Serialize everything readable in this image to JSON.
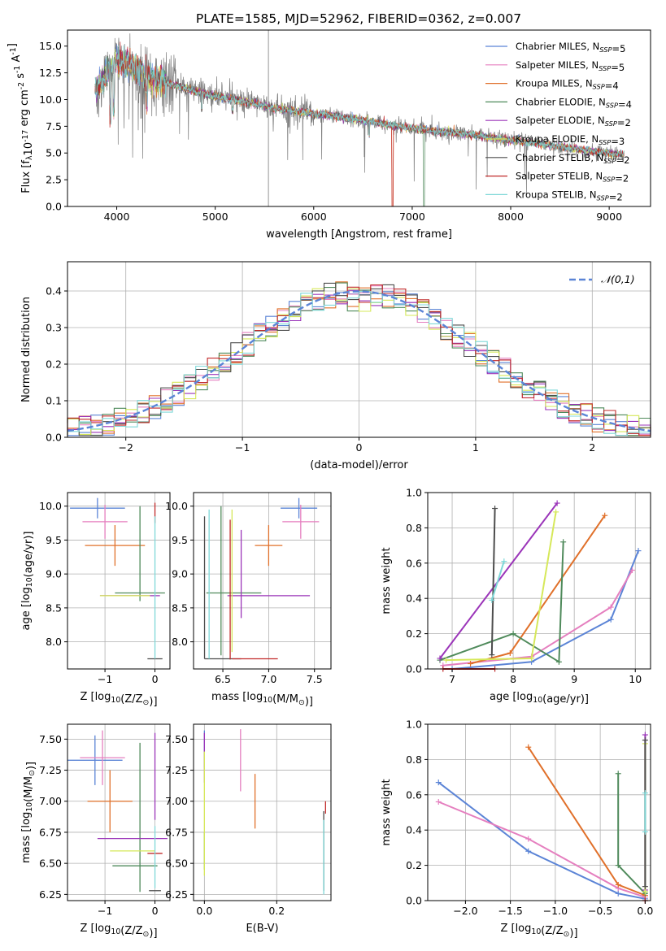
{
  "title": "PLATE=1585, MJD=52962, FIBERID=0362, z=0.007",
  "models": [
    {
      "name": "Chabrier MILES, N$_{SSP}$=5",
      "color": "#5b84d6"
    },
    {
      "name": "Salpeter MILES, N$_{SSP}$=5",
      "color": "#e57fbf"
    },
    {
      "name": "Kroupa MILES, N$_{SSP}$=4",
      "color": "#e0702a"
    },
    {
      "name": "Chabrier ELODIE, N$_{SSP}$=4",
      "color": "#4f8a5b"
    },
    {
      "name": "Salpeter ELODIE, N$_{SSP}$=2",
      "color": "#9b35b9"
    },
    {
      "name": "Kroupa ELODIE, N$_{SSP}$=3",
      "color": "#d6e85a"
    },
    {
      "name": "Chabrier STELIB, N$_{SSP}$=2",
      "color": "#4d4d4d"
    },
    {
      "name": "Salpeter STELIB, N$_{SSP}$=2",
      "color": "#c12a2a"
    },
    {
      "name": "Kroupa STELIB, N$_{SSP}$=2",
      "color": "#7fd8d8"
    }
  ],
  "chart_data": [
    {
      "id": "spectrum",
      "type": "line",
      "xlabel": "wavelength [Angstrom, rest frame]",
      "ylabel": "Flux [f$_\\lambda$10$^{-17}$ erg cm$^{-2}$ s$^{-1}$ A$^{-1}$]",
      "xlim": [
        3500,
        9420
      ],
      "ylim": [
        0,
        16.5
      ],
      "xticks": [
        4000,
        5000,
        6000,
        7000,
        8000,
        9000
      ],
      "yticks": [
        0.0,
        2.5,
        5.0,
        7.5,
        10.0,
        12.5,
        15.0
      ],
      "grid": false,
      "legend": "top-right",
      "continuum": {
        "x": [
          3800,
          3900,
          4000,
          4100,
          4300,
          4500,
          4700,
          5000,
          5300,
          5600,
          6000,
          6400,
          6800,
          7200,
          7600,
          8000,
          8400,
          8800,
          9100
        ],
        "y": [
          11.0,
          12.5,
          13.6,
          13.4,
          12.2,
          11.6,
          11.0,
          10.3,
          9.8,
          9.2,
          8.7,
          8.2,
          7.6,
          7.1,
          6.7,
          6.2,
          5.7,
          5.2,
          4.9
        ]
      },
      "model_wavelength_range": [
        3780,
        9150
      ],
      "model_dropout_wavelengths": [
        3890,
        4630,
        6800,
        7120,
        7420
      ],
      "spike_wavelength": 5540
    },
    {
      "id": "residuals",
      "type": "step",
      "xlabel": "(data-model)/error",
      "ylabel": "Normed distribution",
      "xlim": [
        -2.5,
        2.5
      ],
      "ylim": [
        0,
        0.48
      ],
      "xticks": [
        -2,
        -1,
        0,
        1,
        2
      ],
      "yticks": [
        0.0,
        0.1,
        0.2,
        0.3,
        0.4
      ],
      "grid": true,
      "legend": "top-right",
      "gaussian": {
        "label": "$\\mathcal{N}(0,1)$",
        "mean": 0,
        "sigma": 1,
        "color": "#5b84d6"
      },
      "bin_width": 0.1
    },
    {
      "id": "age-vs-z",
      "type": "errorbar",
      "xlabel": "Z [log$_{10}$(Z/Z$_\\odot$)]",
      "ylabel": "age  [log$_{10}$(age/yr)]",
      "xlim": [
        -1.75,
        0.3
      ],
      "ylim": [
        7.6,
        10.2
      ],
      "xticks": [
        -1,
        0
      ],
      "yticks": [
        8.0,
        8.5,
        9.0,
        9.5,
        10.0
      ],
      "grid": true,
      "points": [
        {
          "model": 0,
          "x": -1.15,
          "y": 9.97,
          "xerr": 0.55,
          "yerr": 0.15
        },
        {
          "model": 1,
          "x": -1.0,
          "y": 9.77,
          "xerr": 0.45,
          "yerr": 0.25
        },
        {
          "model": 2,
          "x": -0.8,
          "y": 9.42,
          "xerr": 0.6,
          "yerr": 0.3
        },
        {
          "model": 3,
          "x": -0.3,
          "y": 9.3,
          "xerr": 0.0,
          "yerr": 0.7
        },
        {
          "model": 3,
          "x": -0.3,
          "y": 8.72,
          "xerr": 0.5,
          "yerr": 0.0
        },
        {
          "model": 4,
          "x": -0.5,
          "y": 8.68,
          "xerr": 0.6,
          "yerr": 0.0
        },
        {
          "model": 5,
          "x": -0.6,
          "y": 8.68,
          "xerr": 0.5,
          "yerr": 0.0
        },
        {
          "model": 6,
          "x": 0.0,
          "y": 7.75,
          "xerr": 0.15,
          "yerr": 0.0
        },
        {
          "model": 7,
          "x": 0.0,
          "y": 9.9,
          "xerr": 0.0,
          "yerr": 0.15
        },
        {
          "model": 8,
          "x": 0.0,
          "y": 8.8,
          "xerr": 0.0,
          "yerr": 1.05
        }
      ]
    },
    {
      "id": "age-vs-mass",
      "type": "errorbar",
      "xlabel": "mass [log$_{10}$(M/M$_\\odot$)]",
      "ylabel": "",
      "xlim": [
        6.18,
        7.68
      ],
      "ylim": [
        7.6,
        10.2
      ],
      "xticks": [
        6.5,
        7.0,
        7.5
      ],
      "yticks": [
        8.0,
        8.5,
        9.0,
        9.5,
        10.0
      ],
      "grid": true,
      "points": [
        {
          "model": 0,
          "x": 7.33,
          "y": 9.97,
          "xerr": 0.2,
          "yerr": 0.15
        },
        {
          "model": 1,
          "x": 7.35,
          "y": 9.77,
          "xerr": 0.2,
          "yerr": 0.25
        },
        {
          "model": 2,
          "x": 7.0,
          "y": 9.42,
          "xerr": 0.15,
          "yerr": 0.3
        },
        {
          "model": 3,
          "x": 6.48,
          "y": 8.9,
          "xerr": 0.0,
          "yerr": 1.1
        },
        {
          "model": 3,
          "x": 6.62,
          "y": 8.72,
          "xerr": 0.3,
          "yerr": 0.0
        },
        {
          "model": 4,
          "x": 7.0,
          "y": 8.68,
          "xerr": 0.45,
          "yerr": 0.0
        },
        {
          "model": 4,
          "x": 6.7,
          "y": 9.0,
          "xerr": 0.0,
          "yerr": 0.65
        },
        {
          "model": 5,
          "x": 6.6,
          "y": 8.9,
          "xerr": 0.0,
          "yerr": 1.05
        },
        {
          "model": 6,
          "x": 6.3,
          "y": 8.8,
          "xerr": 0.0,
          "yerr": 1.05
        },
        {
          "model": 6,
          "x": 6.5,
          "y": 7.75,
          "xerr": 0.2,
          "yerr": 0.0
        },
        {
          "model": 7,
          "x": 6.58,
          "y": 8.77,
          "xerr": 0.0,
          "yerr": 1.03
        },
        {
          "model": 7,
          "x": 6.85,
          "y": 7.75,
          "xerr": 0.25,
          "yerr": 0.0
        },
        {
          "model": 8,
          "x": 6.35,
          "y": 8.85,
          "xerr": 0.0,
          "yerr": 1.1
        }
      ]
    },
    {
      "id": "weight-vs-age",
      "type": "line",
      "xlabel": "age  [log$_{10}$(age/yr)]",
      "ylabel": "mass weight",
      "xlim": [
        6.6,
        10.25
      ],
      "ylim": [
        0,
        1
      ],
      "xticks": [
        7,
        8,
        9,
        10
      ],
      "yticks": [
        0.0,
        0.2,
        0.4,
        0.6,
        0.8,
        1.0
      ],
      "grid": true,
      "series": [
        {
          "model": 0,
          "x": [
            7.0,
            8.3,
            9.6,
            10.05
          ],
          "y": [
            0.0,
            0.04,
            0.28,
            0.67
          ]
        },
        {
          "model": 1,
          "x": [
            6.85,
            8.3,
            9.6,
            9.95
          ],
          "y": [
            0.02,
            0.07,
            0.35,
            0.56
          ]
        },
        {
          "model": 2,
          "x": [
            7.3,
            7.95,
            9.5
          ],
          "y": [
            0.03,
            0.09,
            0.87
          ]
        },
        {
          "model": 3,
          "x": [
            6.8,
            8.0,
            8.75,
            8.82
          ],
          "y": [
            0.05,
            0.2,
            0.04,
            0.72
          ]
        },
        {
          "model": 4,
          "x": [
            6.8,
            8.72
          ],
          "y": [
            0.06,
            0.94
          ]
        },
        {
          "model": 5,
          "x": [
            6.9,
            8.3,
            8.7
          ],
          "y": [
            0.05,
            0.06,
            0.89
          ]
        },
        {
          "model": 6,
          "x": [
            7.65,
            7.7
          ],
          "y": [
            0.08,
            0.91
          ]
        },
        {
          "model": 7,
          "x": [
            6.85,
            7.7
          ],
          "y": [
            0.0,
            0.0
          ]
        },
        {
          "model": 8,
          "x": [
            7.65,
            7.85
          ],
          "y": [
            0.39,
            0.61
          ]
        }
      ]
    },
    {
      "id": "mass-vs-z",
      "type": "errorbar",
      "xlabel": "Z [log$_{10}$(Z/Z$_\\odot$)]",
      "ylabel": "mass [log$_{10}$(M/M$_\\odot$)]",
      "xlim": [
        -1.75,
        0.3
      ],
      "ylim": [
        6.2,
        7.62
      ],
      "xticks": [
        -1,
        0
      ],
      "yticks": [
        6.25,
        6.5,
        6.75,
        7.0,
        7.25,
        7.5
      ],
      "grid": true,
      "points": [
        {
          "model": 0,
          "x": -1.2,
          "y": 7.33,
          "xerr": 0.55,
          "yerr": 0.2
        },
        {
          "model": 1,
          "x": -1.05,
          "y": 7.35,
          "xerr": 0.45,
          "yerr": 0.22
        },
        {
          "model": 2,
          "x": -0.9,
          "y": 7.0,
          "xerr": 0.45,
          "yerr": 0.25
        },
        {
          "model": 3,
          "x": -0.3,
          "y": 6.87,
          "xerr": 0.0,
          "yerr": 0.6
        },
        {
          "model": 3,
          "x": -0.4,
          "y": 6.48,
          "xerr": 0.45,
          "yerr": 0.0
        },
        {
          "model": 4,
          "x": -0.45,
          "y": 6.7,
          "xerr": 0.7,
          "yerr": 0.0
        },
        {
          "model": 4,
          "x": 0.0,
          "y": 7.2,
          "xerr": 0.0,
          "yerr": 0.35
        },
        {
          "model": 5,
          "x": -0.45,
          "y": 6.6,
          "xerr": 0.45,
          "yerr": 0.0
        },
        {
          "model": 6,
          "x": 0.0,
          "y": 6.28,
          "xerr": 0.12,
          "yerr": 0.0
        },
        {
          "model": 7,
          "x": 0.0,
          "y": 6.58,
          "xerr": 0.15,
          "yerr": 0.0
        },
        {
          "model": 8,
          "x": 0.0,
          "y": 6.55,
          "xerr": 0.0,
          "yerr": 0.25
        }
      ]
    },
    {
      "id": "mass-vs-ebv",
      "type": "errorbar",
      "xlabel": "E(B-V)",
      "ylabel": "",
      "xlim": [
        -0.03,
        0.35
      ],
      "ylim": [
        6.2,
        7.62
      ],
      "xticks": [
        0.0,
        0.2
      ],
      "yticks": [
        6.25,
        6.5,
        6.75,
        7.0,
        7.25,
        7.5
      ],
      "grid": true,
      "points": [
        {
          "model": 0,
          "x": 0.0,
          "y": 7.42,
          "xerr": 0.0,
          "yerr": 0.15
        },
        {
          "model": 1,
          "x": 0.1,
          "y": 7.33,
          "xerr": 0.0,
          "yerr": 0.25
        },
        {
          "model": 2,
          "x": 0.14,
          "y": 7.0,
          "xerr": 0.0,
          "yerr": 0.22
        },
        {
          "model": 3,
          "x": 0.0,
          "y": 6.6,
          "xerr": 0.0,
          "yerr": 0.15
        },
        {
          "model": 4,
          "x": 0.0,
          "y": 7.35,
          "xerr": 0.0,
          "yerr": 0.2
        },
        {
          "model": 5,
          "x": 0.0,
          "y": 6.9,
          "xerr": 0.0,
          "yerr": 0.5
        },
        {
          "model": 6,
          "x": 0.33,
          "y": 6.6,
          "xerr": 0.0,
          "yerr": 0.32
        },
        {
          "model": 7,
          "x": 0.335,
          "y": 6.95,
          "xerr": 0.0,
          "yerr": 0.05
        },
        {
          "model": 8,
          "x": 0.33,
          "y": 6.55,
          "xerr": 0.0,
          "yerr": 0.3
        }
      ]
    },
    {
      "id": "weight-vs-z",
      "type": "line",
      "xlabel": "Z [log$_{10}$(Z/Z$_\\odot$)]",
      "ylabel": "mass weight",
      "xlim": [
        -2.42,
        0.06
      ],
      "ylim": [
        0,
        1
      ],
      "xticks": [
        -2.0,
        -1.5,
        -1.0,
        -0.5,
        0.0
      ],
      "yticks": [
        0.0,
        0.2,
        0.4,
        0.6,
        0.8,
        1.0
      ],
      "grid": true,
      "series": [
        {
          "model": 0,
          "x": [
            -2.3,
            -1.3,
            -0.3,
            0.0
          ],
          "y": [
            0.67,
            0.28,
            0.04,
            0.01
          ]
        },
        {
          "model": 1,
          "x": [
            -2.3,
            -1.3,
            -0.3,
            0.0
          ],
          "y": [
            0.56,
            0.35,
            0.07,
            0.02
          ]
        },
        {
          "model": 2,
          "x": [
            -1.3,
            -0.3,
            0.0
          ],
          "y": [
            0.87,
            0.09,
            0.03
          ]
        },
        {
          "model": 3,
          "x": [
            -0.3,
            -0.3,
            0.0,
            0.0
          ],
          "y": [
            0.72,
            0.2,
            0.04,
            0.05
          ]
        },
        {
          "model": 4,
          "x": [
            0.0,
            0.0
          ],
          "y": [
            0.94,
            0.06
          ]
        },
        {
          "model": 5,
          "x": [
            0.0,
            0.0
          ],
          "y": [
            0.89,
            0.05
          ]
        },
        {
          "model": 6,
          "x": [
            0.0,
            0.0
          ],
          "y": [
            0.91,
            0.08
          ]
        },
        {
          "model": 7,
          "x": [
            0.0,
            0.0
          ],
          "y": [
            0.0,
            0.0
          ]
        },
        {
          "model": 8,
          "x": [
            0.0,
            0.0
          ],
          "y": [
            0.61,
            0.39
          ]
        }
      ]
    }
  ]
}
